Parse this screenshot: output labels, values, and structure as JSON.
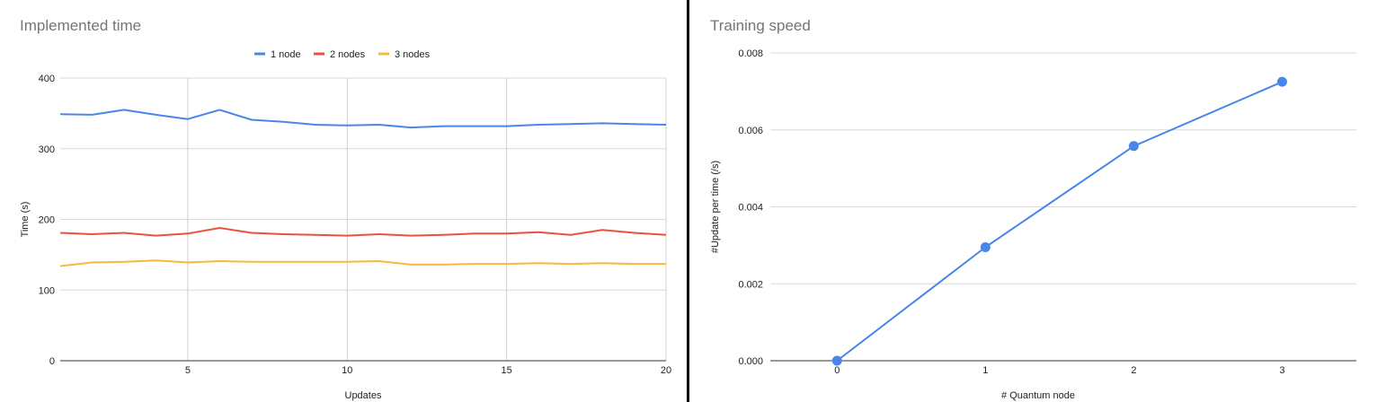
{
  "chart_data": [
    {
      "type": "line",
      "title": "Implemented time",
      "xlabel": "Updates",
      "ylabel": "Time (s)",
      "xlim": [
        1,
        20
      ],
      "ylim": [
        0,
        400
      ],
      "x_ticks": [
        5,
        10,
        15,
        20
      ],
      "y_ticks": [
        0,
        100,
        200,
        300,
        400
      ],
      "grid": "vertical and horizontal",
      "legend_position": "top-center",
      "x": [
        1,
        2,
        3,
        4,
        5,
        6,
        7,
        8,
        9,
        10,
        11,
        12,
        13,
        14,
        15,
        16,
        17,
        18,
        19,
        20
      ],
      "series": [
        {
          "name": "1 node",
          "color": "#4a86e8",
          "values": [
            349,
            348,
            355,
            348,
            342,
            355,
            341,
            338,
            334,
            333,
            334,
            330,
            332,
            332,
            332,
            334,
            335,
            336,
            335,
            334
          ]
        },
        {
          "name": "2 nodes",
          "color": "#e8533f",
          "values": [
            181,
            179,
            181,
            177,
            180,
            188,
            181,
            179,
            178,
            177,
            179,
            177,
            178,
            180,
            180,
            182,
            178,
            185,
            181,
            178
          ]
        },
        {
          "name": "3 nodes",
          "color": "#f6b93b",
          "values": [
            134,
            139,
            140,
            142,
            139,
            141,
            140,
            140,
            140,
            140,
            141,
            136,
            136,
            137,
            137,
            138,
            137,
            138,
            137,
            137
          ]
        }
      ]
    },
    {
      "type": "line",
      "title": "Training speed",
      "xlabel": "# Quantum node",
      "ylabel": "#Update per time (/s)",
      "xlim": [
        -0.45,
        3.5
      ],
      "ylim": [
        0,
        0.008
      ],
      "x_ticks": [
        0,
        1,
        2,
        3
      ],
      "y_ticks": [
        "0.000",
        "0.002",
        "0.004",
        "0.006",
        "0.008"
      ],
      "grid": "horizontal",
      "legend_position": "none",
      "x": [
        0,
        1,
        2,
        3
      ],
      "series": [
        {
          "color": "#4a86e8",
          "markers": true,
          "values": [
            0.0,
            0.00295,
            0.00558,
            0.00725
          ]
        }
      ]
    }
  ]
}
